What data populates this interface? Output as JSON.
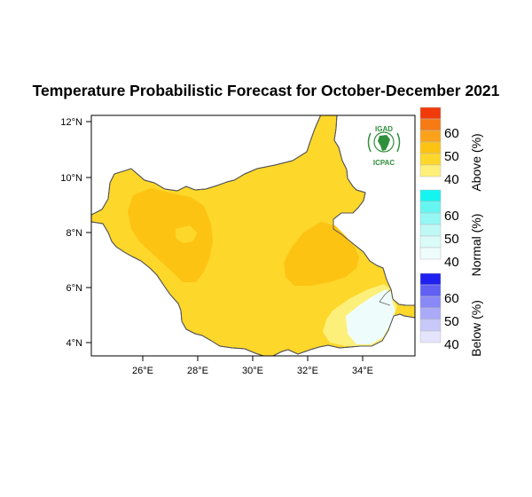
{
  "title": "Temperature Probabilistic Forecast for October-December 2021",
  "map": {
    "lat_ticks": [
      "12°N",
      "10°N",
      "8°N",
      "6°N",
      "4°N"
    ],
    "lon_ticks": [
      "26°E",
      "28°E",
      "30°E",
      "32°E",
      "34°E"
    ]
  },
  "logo": {
    "top": "IGAD",
    "bottom": "ICPAC"
  },
  "legend": {
    "above": {
      "title": "Above (%)",
      "labels": [
        "60",
        "50",
        "40"
      ],
      "colors": [
        "#f03a0a",
        "#f77a12",
        "#fba21a",
        "#fdc313",
        "#fdd72a",
        "#fdf07a"
      ]
    },
    "normal": {
      "title": "Normal (%)",
      "labels": [
        "60",
        "50",
        "40"
      ],
      "colors": [
        "#15f5f0",
        "#66f6f2",
        "#95f7f4",
        "#bff9f6",
        "#dbfbf9",
        "#eefcfb"
      ]
    },
    "below": {
      "title": "Below (%)",
      "labels": [
        "60",
        "50",
        "40"
      ],
      "colors": [
        "#2020f0",
        "#6060f4",
        "#8888f6",
        "#aaaaf8",
        "#c8c8fa",
        "#e4e4fc"
      ]
    }
  }
}
